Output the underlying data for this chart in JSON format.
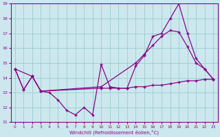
{
  "xlabel": "Windchill (Refroidissement éolien,°C)",
  "bg_color": "#cce8ee",
  "line_color": "#880088",
  "grid_color": "#99cccc",
  "xlim": [
    -0.5,
    23.5
  ],
  "ylim": [
    11,
    19
  ],
  "xticks": [
    0,
    1,
    2,
    3,
    4,
    5,
    6,
    7,
    8,
    9,
    10,
    11,
    12,
    13,
    14,
    15,
    16,
    17,
    18,
    19,
    20,
    21,
    22,
    23
  ],
  "yticks": [
    11,
    12,
    13,
    14,
    15,
    16,
    17,
    18,
    19
  ],
  "line1_x": [
    0,
    1,
    2,
    3,
    4,
    5,
    6,
    7,
    8,
    9,
    10,
    11,
    12,
    13,
    14,
    15,
    16,
    17,
    18,
    19,
    20,
    21,
    22,
    23
  ],
  "line1_y": [
    14.6,
    13.2,
    14.1,
    13.1,
    13.0,
    12.5,
    11.8,
    11.5,
    12.0,
    11.5,
    14.9,
    13.4,
    13.3,
    13.3,
    14.8,
    15.5,
    16.8,
    17.0,
    18.0,
    19.0,
    17.0,
    15.3,
    14.6,
    13.9
  ],
  "line2_x": [
    0,
    2,
    3,
    10,
    14,
    15,
    16,
    17,
    18,
    19,
    20,
    21,
    22,
    23
  ],
  "line2_y": [
    14.6,
    14.1,
    13.1,
    13.4,
    15.0,
    15.6,
    16.2,
    16.8,
    17.2,
    17.1,
    16.1,
    15.0,
    14.6,
    13.9
  ],
  "line3_x": [
    0,
    1,
    2,
    3,
    10,
    11,
    12,
    13,
    14,
    15,
    16,
    17,
    18,
    19,
    20,
    21,
    22,
    23
  ],
  "line3_y": [
    14.6,
    13.2,
    14.1,
    13.1,
    13.3,
    13.3,
    13.3,
    13.3,
    13.4,
    13.4,
    13.5,
    13.5,
    13.6,
    13.7,
    13.8,
    13.8,
    13.9,
    13.9
  ]
}
